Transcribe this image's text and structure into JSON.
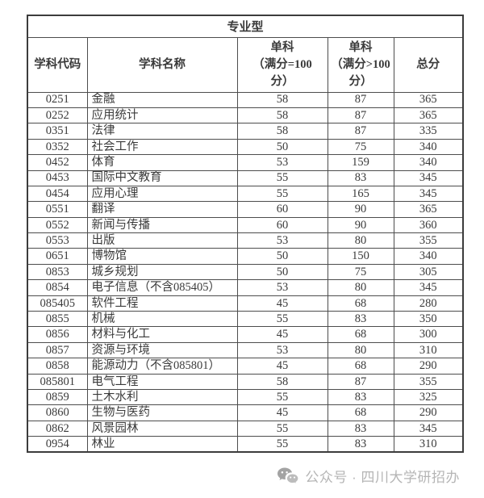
{
  "table": {
    "group_header": "专业型",
    "columns": [
      {
        "label": "学科代码"
      },
      {
        "label": "学科名称"
      },
      {
        "label": "单科\n（满分=100\n分）"
      },
      {
        "label": "单科\n（满分>100\n分）"
      },
      {
        "label": "总分"
      }
    ],
    "rows": [
      {
        "code": "0251",
        "name": "金融",
        "single_100": "58",
        "single_gt100": "87",
        "total": "365"
      },
      {
        "code": "0252",
        "name": "应用统计",
        "single_100": "58",
        "single_gt100": "87",
        "total": "365"
      },
      {
        "code": "0351",
        "name": "法律",
        "single_100": "58",
        "single_gt100": "87",
        "total": "335"
      },
      {
        "code": "0352",
        "name": "社会工作",
        "single_100": "50",
        "single_gt100": "75",
        "total": "340"
      },
      {
        "code": "0452",
        "name": "体育",
        "single_100": "53",
        "single_gt100": "159",
        "total": "340"
      },
      {
        "code": "0453",
        "name": "国际中文教育",
        "single_100": "55",
        "single_gt100": "83",
        "total": "345"
      },
      {
        "code": "0454",
        "name": "应用心理",
        "single_100": "55",
        "single_gt100": "165",
        "total": "345"
      },
      {
        "code": "0551",
        "name": "翻译",
        "single_100": "60",
        "single_gt100": "90",
        "total": "365"
      },
      {
        "code": "0552",
        "name": "新闻与传播",
        "single_100": "60",
        "single_gt100": "90",
        "total": "360"
      },
      {
        "code": "0553",
        "name": "出版",
        "single_100": "53",
        "single_gt100": "80",
        "total": "355"
      },
      {
        "code": "0651",
        "name": "博物馆",
        "single_100": "50",
        "single_gt100": "150",
        "total": "340"
      },
      {
        "code": "0853",
        "name": "城乡规划",
        "single_100": "50",
        "single_gt100": "75",
        "total": "305"
      },
      {
        "code": "0854",
        "name": "电子信息（不含085405）",
        "single_100": "53",
        "single_gt100": "80",
        "total": "345"
      },
      {
        "code": "085405",
        "name": "软件工程",
        "single_100": "45",
        "single_gt100": "68",
        "total": "280"
      },
      {
        "code": "0855",
        "name": "机械",
        "single_100": "55",
        "single_gt100": "83",
        "total": "350"
      },
      {
        "code": "0856",
        "name": "材料与化工",
        "single_100": "45",
        "single_gt100": "68",
        "total": "300"
      },
      {
        "code": "0857",
        "name": "资源与环境",
        "single_100": "53",
        "single_gt100": "80",
        "total": "310"
      },
      {
        "code": "0858",
        "name": "能源动力（不含085801）",
        "single_100": "45",
        "single_gt100": "68",
        "total": "290"
      },
      {
        "code": "085801",
        "name": "电气工程",
        "single_100": "58",
        "single_gt100": "87",
        "total": "355"
      },
      {
        "code": "0859",
        "name": "土木水利",
        "single_100": "55",
        "single_gt100": "83",
        "total": "325"
      },
      {
        "code": "0860",
        "name": "生物与医药",
        "single_100": "45",
        "single_gt100": "68",
        "total": "290"
      },
      {
        "code": "0862",
        "name": "风景园林",
        "single_100": "55",
        "single_gt100": "83",
        "total": "345"
      },
      {
        "code": "0954",
        "name": "林业",
        "single_100": "55",
        "single_gt100": "83",
        "total": "310"
      }
    ]
  },
  "footer": {
    "watermark_text": "公众号 · 四川大学研招办",
    "watermark_icon": "wechat-icon",
    "watermark_color": "#b5b5b5",
    "icon_color_dark": "#a3a3a3",
    "icon_color_light": "#bcbcbc"
  },
  "colors": {
    "background": "#ffffff",
    "table_border": "#4d4d4d",
    "text": "#3a3a3a"
  }
}
